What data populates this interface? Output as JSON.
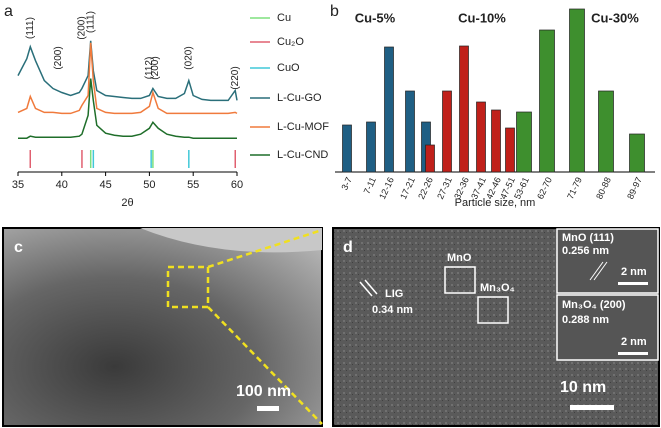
{
  "chart_data": [
    {
      "type": "line",
      "panel_label": "a",
      "xlabel": "2θ",
      "xlim": [
        35,
        60
      ],
      "xticks": [
        35,
        40,
        45,
        50,
        55,
        60
      ],
      "ylim": [
        0,
        165
      ],
      "x": [
        35,
        36,
        36.4,
        37,
        38,
        39,
        40,
        41,
        42,
        42.3,
        43,
        43.3,
        43.6,
        44,
        45,
        46,
        47,
        48,
        49,
        50,
        50.4,
        51,
        52,
        53,
        54,
        54.5,
        55,
        56,
        57,
        58,
        59,
        59.8,
        60
      ],
      "series": [
        {
          "name": "L-Cu-GO",
          "color": "#2a6f7a",
          "values": [
            97,
            114,
            126,
            112,
            92,
            84,
            80,
            77,
            80,
            84,
            97,
            132,
            102,
            82,
            77,
            76,
            75,
            74,
            74,
            77,
            84,
            76,
            74,
            74,
            79,
            92,
            77,
            73,
            72,
            72,
            72,
            82,
            72
          ]
        },
        {
          "name": "L-Cu-MOF",
          "color": "#f07a3c",
          "values": [
            60,
            64,
            76,
            64,
            60,
            60,
            59,
            59,
            62,
            67,
            77,
            130,
            92,
            64,
            60,
            59,
            59,
            59,
            60,
            66,
            80,
            64,
            59,
            59,
            59,
            59,
            59,
            59,
            59,
            59,
            59,
            60,
            59
          ]
        },
        {
          "name": "L-Cu-CND",
          "color": "#1f6e2a",
          "values": [
            34,
            34,
            36,
            35,
            35,
            35,
            35,
            35,
            36,
            38,
            57,
            94,
            72,
            47,
            39,
            37,
            36,
            36,
            38,
            44,
            50,
            44,
            38,
            36,
            35,
            35,
            34,
            34,
            34,
            34,
            34,
            34,
            34
          ]
        }
      ],
      "references": [
        {
          "name": "Cu",
          "color": "#7ee07e",
          "positions": [
            43.3,
            50.4
          ]
        },
        {
          "name": "Cu₂O",
          "color": "#e06070",
          "positions": [
            36.4,
            42.3,
            59.8
          ]
        },
        {
          "name": "CuO",
          "color": "#40c8d8",
          "positions": [
            43.6,
            50.2,
            54.5
          ]
        }
      ],
      "annotations": [
        {
          "text": "(111)",
          "x": 36.4,
          "color": "#e06070"
        },
        {
          "text": "(200)",
          "x": 39.6,
          "color": "#40a8c8"
        },
        {
          "text": "(200)",
          "x": 42.3,
          "color": "#e06070"
        },
        {
          "text": "(111)",
          "x": 43.3,
          "color": "#7ee07e"
        },
        {
          "text": "(112)",
          "x": 50.0,
          "color": "#40a8c8"
        },
        {
          "text": "(200)",
          "x": 50.7,
          "color": "#7ee07e"
        },
        {
          "text": "(020)",
          "x": 54.5,
          "color": "#40a8c8"
        },
        {
          "text": "(220)",
          "x": 59.8,
          "color": "#e06070"
        }
      ]
    },
    {
      "type": "bar",
      "panel_label": "b",
      "xlabel": "Particle size, nm",
      "ylim": [
        0,
        170
      ],
      "categories": [
        "3-7",
        "7-11",
        "12-16",
        "17-21",
        "22-26",
        "27-31",
        "32-36",
        "37-41",
        "42-46",
        "47-51",
        "53-61",
        "62-70",
        "71-79",
        "80-88",
        "89-97"
      ],
      "series": [
        {
          "name": "Cu-5%",
          "color": "#1f5f84",
          "values": [
            47,
            50,
            125,
            81,
            50,
            null,
            null,
            null,
            null,
            null,
            null,
            null,
            null,
            null,
            null
          ]
        },
        {
          "name": "Cu-10%",
          "color": "#c0201a",
          "values": [
            null,
            null,
            null,
            null,
            27,
            81,
            126,
            70,
            62,
            44,
            null,
            null,
            null,
            null,
            null
          ]
        },
        {
          "name": "Cu-30%",
          "color": "#3e8f2e",
          "values": [
            null,
            null,
            null,
            null,
            null,
            null,
            null,
            null,
            null,
            null,
            60,
            142,
            163,
            81,
            38
          ]
        }
      ]
    }
  ],
  "images": {
    "panel_c": {
      "label": "c",
      "scale": "100 nm"
    },
    "panel_d": {
      "label": "d",
      "scale": "10 nm",
      "region_1": "MnO",
      "region_2": "Mn₃O₄",
      "lig": "LIG",
      "lig_spacing": "0.34 nm",
      "insets": [
        {
          "title": "MnO (111)",
          "spacing": "0.256 nm",
          "scale": "2 nm"
        },
        {
          "title": "Mn₃O₄ (200)",
          "spacing": "0.288 nm",
          "scale": "2 nm"
        }
      ]
    }
  }
}
